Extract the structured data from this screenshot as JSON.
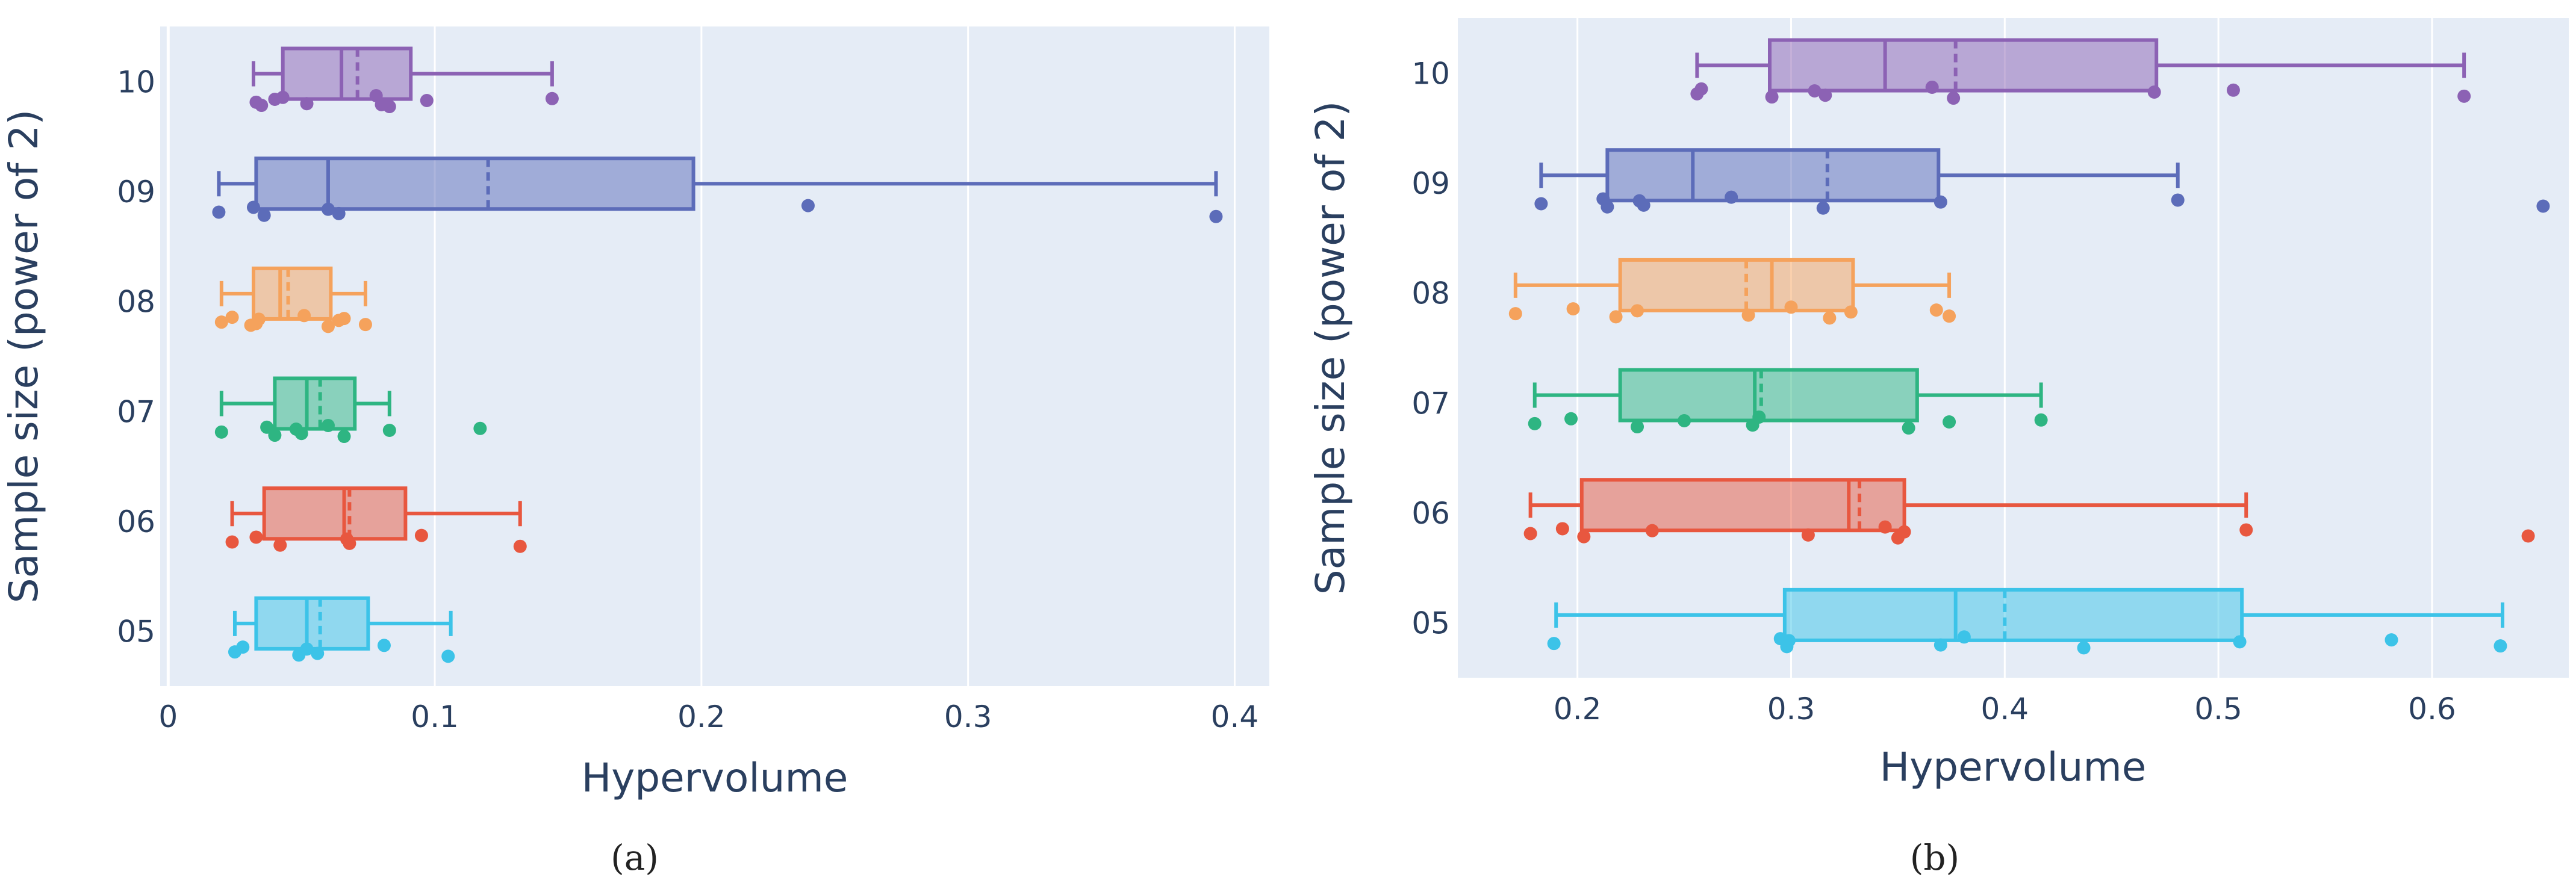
{
  "chart_data": [
    {
      "type": "box",
      "orientation": "horizontal",
      "panel_label": "(a)",
      "xlabel": "Hypervolume",
      "ylabel": "Sample size (power of 2)",
      "xlim": [
        -0.003,
        0.413
      ],
      "xticks": [
        0,
        0.1,
        0.2,
        0.3,
        0.4
      ],
      "xtick_labels": [
        "0",
        "0.1",
        "0.2",
        "0.3",
        "0.4"
      ],
      "grid": true,
      "categories": [
        "10",
        "09",
        "08",
        "07",
        "06",
        "05"
      ],
      "series": [
        {
          "name": "10",
          "color": "#8c62b4",
          "min": 0.032,
          "q1": 0.043,
          "median": 0.065,
          "mean": 0.071,
          "q3": 0.091,
          "max": 0.144,
          "points": [
            0.033,
            0.043,
            0.035,
            0.04,
            0.052,
            0.078,
            0.083,
            0.097,
            0.144,
            0.08
          ]
        },
        {
          "name": "09",
          "color": "#5c6cb9",
          "min": 0.019,
          "q1": 0.033,
          "median": 0.06,
          "mean": 0.12,
          "q3": 0.197,
          "max": 0.393,
          "points": [
            0.019,
            0.032,
            0.036,
            0.06,
            0.064,
            0.24,
            0.393
          ]
        },
        {
          "name": "08",
          "color": "#f5a25c",
          "min": 0.02,
          "q1": 0.032,
          "median": 0.042,
          "mean": 0.045,
          "q3": 0.061,
          "max": 0.074,
          "points": [
            0.02,
            0.024,
            0.031,
            0.034,
            0.033,
            0.051,
            0.06,
            0.064,
            0.066,
            0.074
          ]
        },
        {
          "name": "07",
          "color": "#2eb582",
          "min": 0.02,
          "q1": 0.04,
          "median": 0.052,
          "mean": 0.057,
          "q3": 0.07,
          "max": 0.083,
          "points": [
            0.02,
            0.037,
            0.04,
            0.048,
            0.05,
            0.06,
            0.066,
            0.083,
            0.117
          ]
        },
        {
          "name": "06",
          "color": "#e8573f",
          "min": 0.024,
          "q1": 0.036,
          "median": 0.066,
          "mean": 0.068,
          "q3": 0.089,
          "max": 0.132,
          "points": [
            0.024,
            0.033,
            0.042,
            0.067,
            0.068,
            0.095,
            0.132
          ]
        },
        {
          "name": "05",
          "color": "#3cc3e8",
          "min": 0.025,
          "q1": 0.033,
          "median": 0.052,
          "mean": 0.057,
          "q3": 0.075,
          "max": 0.106,
          "points": [
            0.025,
            0.028,
            0.049,
            0.052,
            0.056,
            0.081,
            0.105
          ]
        }
      ]
    },
    {
      "type": "box",
      "orientation": "horizontal",
      "panel_label": "(b)",
      "xlabel": "Hypervolume",
      "ylabel": "Sample size (power of 2)",
      "xlim": [
        0.144,
        0.664
      ],
      "xticks": [
        0.2,
        0.3,
        0.4,
        0.5,
        0.6
      ],
      "xtick_labels": [
        "0.2",
        "0.3",
        "0.4",
        "0.5",
        "0.6"
      ],
      "grid": true,
      "categories": [
        "10",
        "09",
        "08",
        "07",
        "06",
        "05"
      ],
      "series": [
        {
          "name": "10",
          "color": "#8c62b4",
          "min": 0.256,
          "q1": 0.29,
          "median": 0.344,
          "mean": 0.377,
          "q3": 0.471,
          "max": 0.615,
          "points": [
            0.256,
            0.258,
            0.291,
            0.311,
            0.316,
            0.366,
            0.376,
            0.47,
            0.507,
            0.615
          ]
        },
        {
          "name": "09",
          "color": "#5c6cb9",
          "min": 0.183,
          "q1": 0.214,
          "median": 0.254,
          "mean": 0.317,
          "q3": 0.369,
          "max": 0.481,
          "points": [
            0.183,
            0.212,
            0.214,
            0.229,
            0.231,
            0.272,
            0.315,
            0.37,
            0.481,
            0.652
          ]
        },
        {
          "name": "08",
          "color": "#f5a25c",
          "min": 0.171,
          "q1": 0.22,
          "median": 0.291,
          "mean": 0.279,
          "q3": 0.329,
          "max": 0.374,
          "points": [
            0.171,
            0.198,
            0.218,
            0.228,
            0.28,
            0.3,
            0.318,
            0.328,
            0.368,
            0.374
          ]
        },
        {
          "name": "07",
          "color": "#2eb582",
          "min": 0.18,
          "q1": 0.22,
          "median": 0.283,
          "mean": 0.286,
          "q3": 0.359,
          "max": 0.417,
          "points": [
            0.18,
            0.197,
            0.228,
            0.25,
            0.282,
            0.285,
            0.355,
            0.374,
            0.417
          ]
        },
        {
          "name": "06",
          "color": "#e8573f",
          "min": 0.178,
          "q1": 0.202,
          "median": 0.327,
          "mean": 0.332,
          "q3": 0.353,
          "max": 0.513,
          "points": [
            0.178,
            0.193,
            0.203,
            0.235,
            0.308,
            0.344,
            0.35,
            0.353,
            0.513,
            0.645
          ]
        },
        {
          "name": "05",
          "color": "#3cc3e8",
          "min": 0.19,
          "q1": 0.297,
          "median": 0.377,
          "mean": 0.4,
          "q3": 0.511,
          "max": 0.633,
          "points": [
            0.189,
            0.295,
            0.298,
            0.299,
            0.37,
            0.381,
            0.437,
            0.51,
            0.581,
            0.632
          ]
        }
      ]
    }
  ]
}
